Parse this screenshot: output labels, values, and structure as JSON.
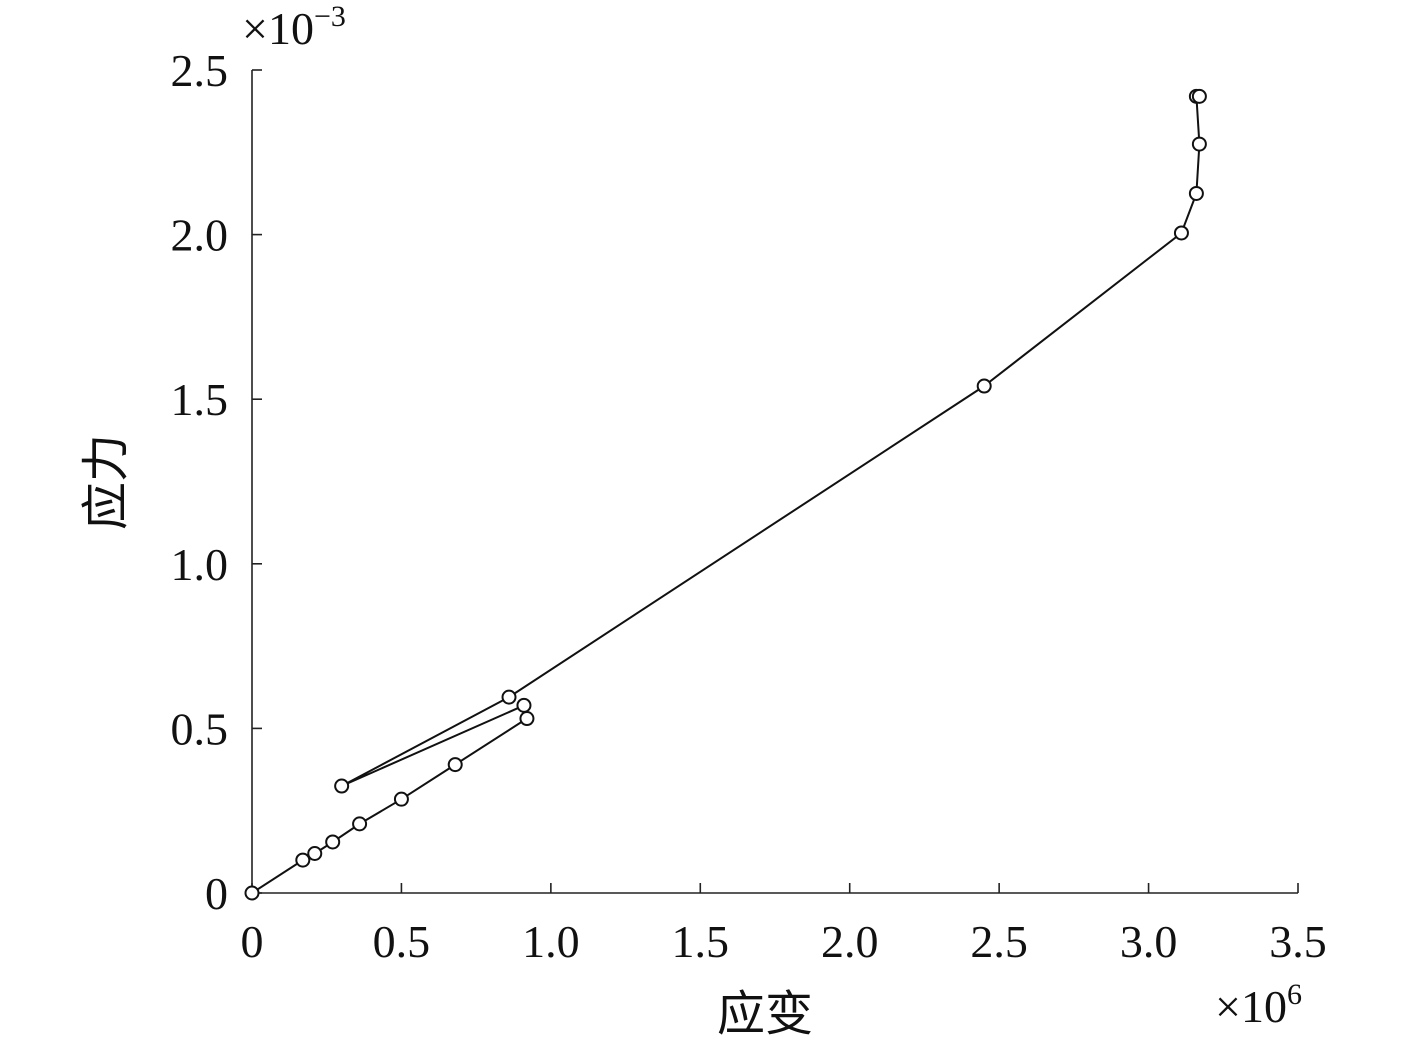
{
  "chart_data": {
    "type": "line",
    "xlabel": "应变",
    "ylabel": "应力",
    "x_multiplier": {
      "base": "×10",
      "exponent": "6"
    },
    "y_multiplier": {
      "base": "×10",
      "exponent": "−3"
    },
    "xlim": [
      0,
      3.5
    ],
    "ylim": [
      0,
      2.5
    ],
    "x_ticks": [
      "0",
      "0.5",
      "1.0",
      "1.5",
      "2.0",
      "2.5",
      "3.0",
      "3.5"
    ],
    "y_ticks": [
      "0",
      "0.5",
      "1.0",
      "1.5",
      "2.0",
      "2.5"
    ],
    "grid": false,
    "marker": "circle",
    "series": [
      {
        "x": [
          0.0,
          0.17,
          0.21,
          0.27,
          0.36,
          0.5,
          0.68,
          0.92,
          0.91,
          0.3,
          0.86,
          2.45,
          3.11,
          3.16,
          3.17,
          3.16,
          3.17
        ],
        "y": [
          0.0,
          0.1,
          0.12,
          0.155,
          0.21,
          0.285,
          0.39,
          0.53,
          0.57,
          0.325,
          0.595,
          1.54,
          2.005,
          2.125,
          2.275,
          2.42,
          2.42
        ]
      }
    ]
  }
}
